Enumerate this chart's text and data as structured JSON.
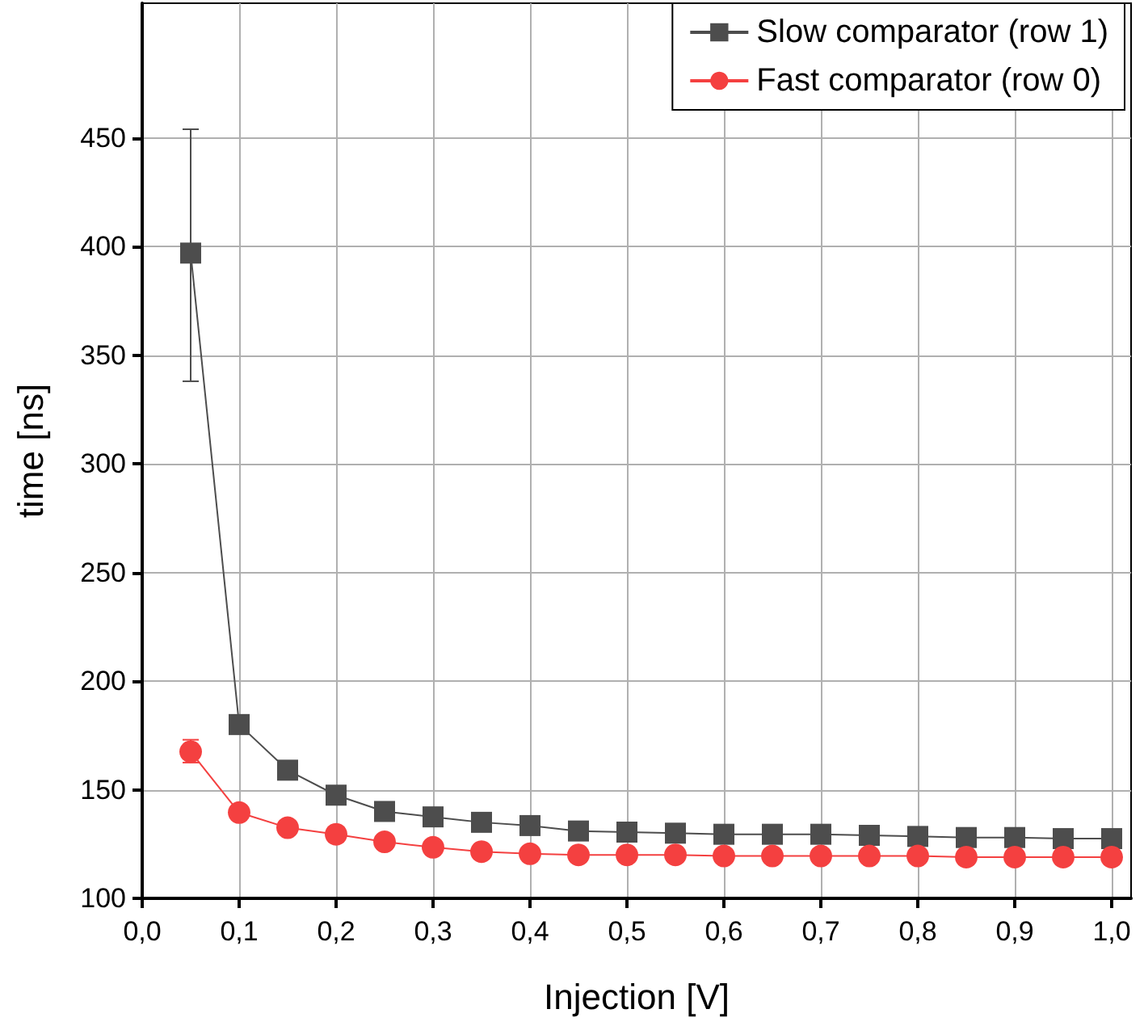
{
  "chart_data": {
    "type": "line",
    "xlabel": "Injection [V]",
    "ylabel": "time [ns]",
    "x": [
      0.05,
      0.1,
      0.15,
      0.2,
      0.25,
      0.3,
      0.35,
      0.4,
      0.45,
      0.5,
      0.55,
      0.6,
      0.65,
      0.7,
      0.75,
      0.8,
      0.85,
      0.9,
      0.95,
      1.0
    ],
    "series": [
      {
        "name": "Slow comparator (row 1)",
        "color": "#4d4d4d",
        "marker": "square",
        "values": [
          397,
          180,
          159,
          147.5,
          140,
          137.5,
          135,
          133.5,
          131,
          130.5,
          130,
          129.5,
          129.5,
          129.5,
          129,
          128.5,
          128,
          128,
          127.5,
          127.5
        ],
        "errors": [
          [
            338,
            454
          ],
          [
            177,
            184
          ],
          null,
          null,
          null,
          null,
          null,
          null,
          null,
          null,
          null,
          null,
          null,
          null,
          null,
          null,
          null,
          null,
          null,
          null
        ]
      },
      {
        "name": "Fast comparator (row 0)",
        "color": "#f44040",
        "marker": "circle",
        "values": [
          167.5,
          139.5,
          132.5,
          129.5,
          126,
          123.5,
          121.5,
          120.5,
          120,
          120,
          120,
          119.5,
          119.5,
          119.5,
          119.5,
          119.5,
          119,
          119,
          119,
          119
        ],
        "errors": [
          [
            162.5,
            173
          ],
          null,
          null,
          null,
          null,
          null,
          null,
          null,
          null,
          null,
          null,
          null,
          null,
          null,
          null,
          null,
          null,
          null,
          null,
          null
        ]
      }
    ],
    "xlim": [
      0,
      1.02
    ],
    "xticks": [
      {
        "value": 0,
        "label": "0,0"
      },
      {
        "value": 0.1,
        "label": "0,1"
      },
      {
        "value": 0.2,
        "label": "0,2"
      },
      {
        "value": 0.3,
        "label": "0,3"
      },
      {
        "value": 0.4,
        "label": "0,4"
      },
      {
        "value": 0.5,
        "label": "0,5"
      },
      {
        "value": 0.6,
        "label": "0,6"
      },
      {
        "value": 0.7,
        "label": "0,7"
      },
      {
        "value": 0.8,
        "label": "0,8"
      },
      {
        "value": 0.9,
        "label": "0,9"
      },
      {
        "value": 1.0,
        "label": "1,0"
      }
    ],
    "ylim": [
      100,
      512
    ],
    "yticks": [
      100,
      150,
      200,
      250,
      300,
      350,
      400,
      450
    ],
    "grid": true,
    "legend": "top right",
    "line_style": "solid"
  }
}
